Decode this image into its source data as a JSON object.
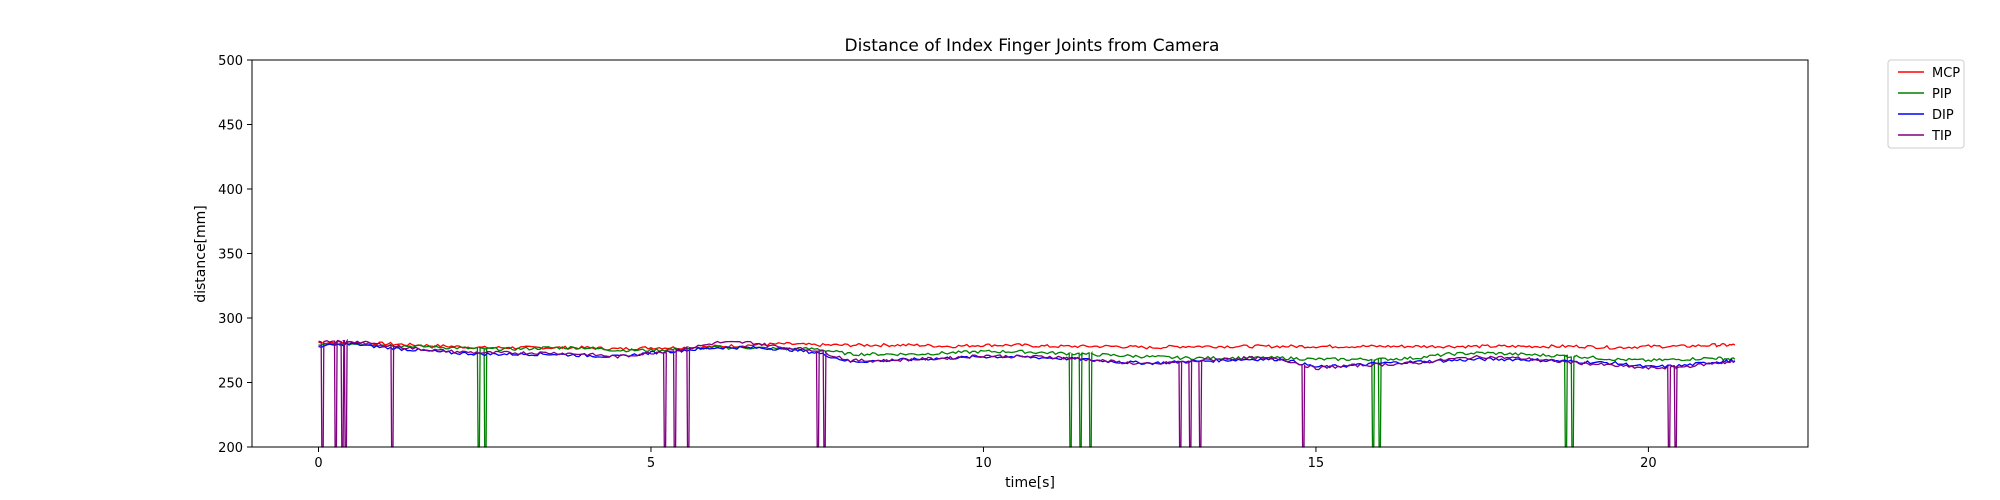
{
  "chart_data": {
    "type": "line",
    "title": "Distance of Index Finger Joints from Camera",
    "xlabel": "time[s]",
    "ylabel": "distance[mm]",
    "xlim": [
      -1.0,
      22.4
    ],
    "ylim": [
      200,
      500
    ],
    "xticks": [
      0,
      5,
      10,
      15,
      20
    ],
    "yticks": [
      200,
      250,
      300,
      350,
      400,
      450,
      500
    ],
    "grid": false,
    "legend_position": "outside top-right",
    "series": [
      {
        "name": "MCP",
        "color": "#ff0000",
        "x": [
          0.0,
          0.5,
          1.0,
          1.5,
          2.0,
          2.5,
          3.0,
          3.5,
          4.0,
          4.5,
          5.0,
          5.5,
          6.0,
          6.5,
          7.0,
          7.5,
          8.0,
          8.5,
          9.0,
          9.5,
          10.0,
          10.5,
          11.0,
          11.5,
          12.0,
          12.5,
          13.0,
          13.5,
          14.0,
          14.5,
          15.0,
          15.5,
          16.0,
          16.5,
          17.0,
          17.5,
          18.0,
          18.5,
          19.0,
          19.5,
          20.0,
          20.5,
          21.0,
          21.3
        ],
        "y": [
          281,
          281,
          280,
          279,
          278,
          277,
          277,
          277,
          277,
          276,
          277,
          277,
          278,
          279,
          280,
          279,
          279,
          279,
          279,
          278,
          279,
          279,
          278,
          278,
          278,
          277,
          278,
          278,
          278,
          278,
          278,
          278,
          278,
          278,
          278,
          278,
          278,
          278,
          278,
          277,
          278,
          278,
          279,
          279
        ],
        "dropouts": []
      },
      {
        "name": "PIP",
        "color": "#008000",
        "x": [
          0.0,
          0.5,
          1.0,
          1.5,
          2.0,
          2.5,
          3.0,
          3.5,
          4.0,
          4.5,
          5.0,
          5.5,
          6.0,
          6.5,
          7.0,
          7.5,
          8.0,
          8.5,
          9.0,
          9.5,
          10.0,
          10.5,
          11.0,
          11.5,
          12.0,
          12.5,
          13.0,
          13.5,
          14.0,
          14.5,
          15.0,
          15.5,
          16.0,
          16.5,
          17.0,
          17.5,
          18.0,
          18.5,
          19.0,
          19.5,
          20.0,
          20.5,
          21.0,
          21.3
        ],
        "y": [
          279,
          280,
          279,
          278,
          277,
          276,
          276,
          277,
          277,
          275,
          275,
          276,
          277,
          277,
          276,
          276,
          272,
          272,
          272,
          273,
          274,
          274,
          273,
          272,
          271,
          270,
          269,
          269,
          269,
          269,
          268,
          268,
          268,
          269,
          272,
          273,
          272,
          271,
          270,
          268,
          267,
          268,
          269,
          268
        ],
        "dropouts": [
          2.4,
          2.5,
          11.3,
          11.45,
          11.6,
          15.85,
          15.95,
          18.75,
          18.85
        ]
      },
      {
        "name": "DIP",
        "color": "#0000ff",
        "x": [
          0.0,
          0.5,
          1.0,
          1.5,
          2.0,
          2.5,
          3.0,
          3.5,
          4.0,
          4.5,
          5.0,
          5.5,
          6.0,
          6.5,
          7.0,
          7.5,
          8.0,
          8.5,
          9.0,
          9.5,
          10.0,
          10.5,
          11.0,
          11.5,
          12.0,
          12.5,
          13.0,
          13.5,
          14.0,
          14.5,
          15.0,
          15.5,
          16.0,
          16.5,
          17.0,
          17.5,
          18.0,
          18.5,
          19.0,
          19.5,
          20.0,
          20.5,
          21.0,
          21.3
        ],
        "y": [
          278,
          280,
          277,
          275,
          273,
          272,
          272,
          272,
          271,
          270,
          273,
          275,
          277,
          277,
          276,
          273,
          266,
          267,
          268,
          269,
          270,
          270,
          269,
          268,
          266,
          265,
          266,
          267,
          268,
          268,
          262,
          263,
          265,
          266,
          267,
          268,
          268,
          267,
          266,
          265,
          262,
          263,
          266,
          267
        ],
        "dropouts": []
      },
      {
        "name": "TIP",
        "color": "#800080",
        "x": [
          0.0,
          0.5,
          1.0,
          1.5,
          2.0,
          2.5,
          3.0,
          3.5,
          4.0,
          4.5,
          5.0,
          5.5,
          6.0,
          6.5,
          7.0,
          7.5,
          8.0,
          8.5,
          9.0,
          9.5,
          10.0,
          10.5,
          11.0,
          11.5,
          12.0,
          12.5,
          13.0,
          13.5,
          14.0,
          14.5,
          15.0,
          15.5,
          16.0,
          16.5,
          17.0,
          17.5,
          18.0,
          18.5,
          19.0,
          19.5,
          20.0,
          20.5,
          21.0,
          21.3
        ],
        "y": [
          281,
          282,
          279,
          276,
          274,
          273,
          273,
          273,
          272,
          270,
          273,
          276,
          281,
          281,
          277,
          275,
          267,
          267,
          268,
          269,
          271,
          270,
          270,
          268,
          266,
          264,
          266,
          268,
          269,
          268,
          261,
          263,
          264,
          265,
          268,
          270,
          269,
          267,
          265,
          263,
          261,
          262,
          265,
          266
        ],
        "dropouts": [
          0.05,
          0.25,
          0.35,
          0.4,
          1.1,
          5.2,
          5.35,
          5.55,
          7.5,
          7.6,
          12.95,
          13.1,
          13.25,
          14.8,
          20.3,
          20.4
        ]
      }
    ]
  }
}
